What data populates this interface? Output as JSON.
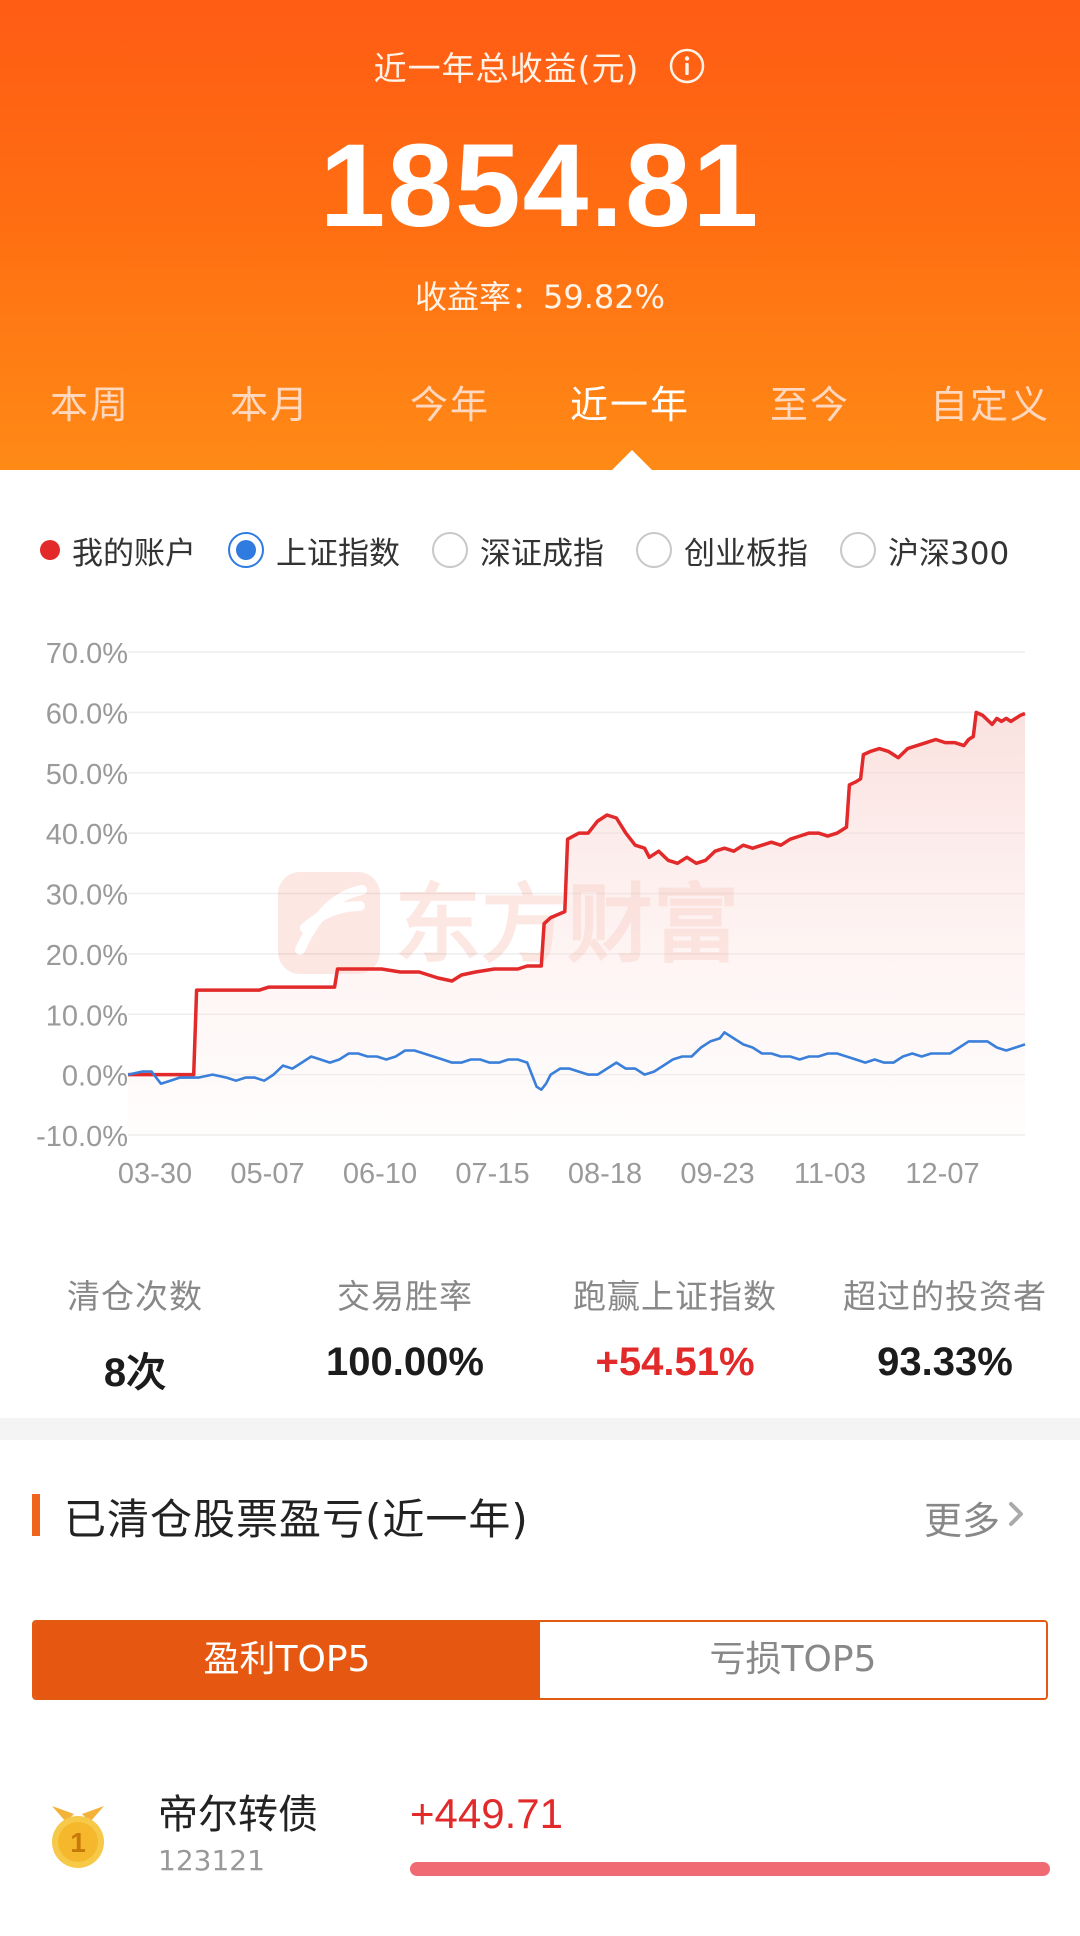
{
  "header": {
    "title": "近一年总收益(元)",
    "info_icon": "info-icon",
    "amount": "1854.81",
    "rate": "收益率：59.82%",
    "colors": {
      "bg_top": "#ff5c14",
      "bg_bottom": "#ff8a16"
    }
  },
  "period_tabs": [
    {
      "label": "本周",
      "active": false
    },
    {
      "label": "本月",
      "active": false
    },
    {
      "label": "今年",
      "active": false
    },
    {
      "label": "近一年",
      "active": true
    },
    {
      "label": "至今",
      "active": false
    },
    {
      "label": "自定义",
      "active": false
    }
  ],
  "index_selector": {
    "account_label": "我的账户",
    "options": [
      {
        "label": "上证指数",
        "checked": true
      },
      {
        "label": "深证成指",
        "checked": false
      },
      {
        "label": "创业板指",
        "checked": false
      },
      {
        "label": "沪深300",
        "checked": false
      }
    ]
  },
  "chart_data": {
    "type": "line",
    "title": "",
    "xlabel": "",
    "ylabel": "",
    "ylim": [
      -10,
      70
    ],
    "y_ticks": [
      "70.0%",
      "60.0%",
      "50.0%",
      "40.0%",
      "30.0%",
      "20.0%",
      "10.0%",
      "0.0%",
      "-10.0%"
    ],
    "x_ticks": [
      "03-30",
      "05-07",
      "06-10",
      "07-15",
      "08-18",
      "09-23",
      "11-03",
      "12-07"
    ],
    "grid": true,
    "legend": "top",
    "watermark": "东方财富",
    "series": [
      {
        "name": "我的账户",
        "color": "#e22a2a",
        "fill": true,
        "points": [
          [
            0,
            0
          ],
          [
            5,
            0
          ],
          [
            10,
            0
          ],
          [
            14,
            0
          ],
          [
            14.6,
            14
          ],
          [
            20,
            14
          ],
          [
            28,
            14
          ],
          [
            30,
            14.5
          ],
          [
            35,
            14.5
          ],
          [
            44,
            14.5
          ],
          [
            44.6,
            17.5
          ],
          [
            54,
            17.5
          ],
          [
            58,
            17
          ],
          [
            62,
            17
          ],
          [
            64,
            16.5
          ],
          [
            66,
            16
          ],
          [
            69,
            15.5
          ],
          [
            71,
            16.5
          ],
          [
            74,
            17
          ],
          [
            78,
            17.5
          ],
          [
            83,
            17.5
          ],
          [
            85,
            18
          ],
          [
            88,
            18
          ],
          [
            88.6,
            25
          ],
          [
            90,
            26
          ],
          [
            93,
            27
          ],
          [
            93.6,
            39
          ],
          [
            96,
            40
          ],
          [
            98,
            40
          ],
          [
            100,
            42
          ],
          [
            102,
            43
          ],
          [
            104,
            42.5
          ],
          [
            106,
            40
          ],
          [
            108,
            38
          ],
          [
            110,
            37.5
          ],
          [
            111,
            36
          ],
          [
            113,
            37
          ],
          [
            115,
            35.5
          ],
          [
            117,
            35
          ],
          [
            119,
            36
          ],
          [
            121,
            35
          ],
          [
            123,
            35.5
          ],
          [
            125,
            37
          ],
          [
            127,
            37.5
          ],
          [
            129,
            37
          ],
          [
            131,
            38
          ],
          [
            133,
            37.5
          ],
          [
            135,
            38
          ],
          [
            137,
            38.5
          ],
          [
            139,
            38
          ],
          [
            141,
            39
          ],
          [
            143,
            39.5
          ],
          [
            145,
            40
          ],
          [
            147,
            40
          ],
          [
            149,
            39.5
          ],
          [
            151,
            40
          ],
          [
            152,
            40.5
          ],
          [
            153,
            41
          ],
          [
            153.6,
            48
          ],
          [
            155,
            48.5
          ],
          [
            156,
            49
          ],
          [
            156.6,
            53
          ],
          [
            158,
            53.5
          ],
          [
            160,
            54
          ],
          [
            162,
            53.5
          ],
          [
            164,
            52.5
          ],
          [
            166,
            54
          ],
          [
            168,
            54.5
          ],
          [
            170,
            55
          ],
          [
            172,
            55.5
          ],
          [
            174,
            55
          ],
          [
            176,
            55
          ],
          [
            178,
            54.5
          ],
          [
            179,
            55.5
          ],
          [
            180,
            56
          ],
          [
            180.6,
            60
          ],
          [
            182,
            59.5
          ],
          [
            184,
            58
          ],
          [
            185,
            59
          ],
          [
            186,
            58.5
          ],
          [
            187,
            59
          ],
          [
            188,
            58.5
          ],
          [
            189,
            59
          ],
          [
            190,
            59.5
          ],
          [
            191,
            59.82
          ]
        ]
      },
      {
        "name": "上证指数",
        "color": "#3a7fd9",
        "fill": false,
        "points": [
          [
            0,
            0
          ],
          [
            3,
            0.5
          ],
          [
            5,
            0.5
          ],
          [
            7,
            -1.5
          ],
          [
            9,
            -1
          ],
          [
            11,
            -0.5
          ],
          [
            13,
            -0.5
          ],
          [
            15,
            -0.5
          ],
          [
            18,
            0
          ],
          [
            21,
            -0.5
          ],
          [
            23,
            -1
          ],
          [
            25,
            -0.5
          ],
          [
            27,
            -0.5
          ],
          [
            29,
            -1
          ],
          [
            31,
            0
          ],
          [
            33,
            1.5
          ],
          [
            35,
            1
          ],
          [
            37,
            2
          ],
          [
            39,
            3
          ],
          [
            41,
            2.5
          ],
          [
            43,
            2
          ],
          [
            45,
            2.5
          ],
          [
            47,
            3.5
          ],
          [
            49,
            3.5
          ],
          [
            51,
            3
          ],
          [
            53,
            3
          ],
          [
            55,
            2.5
          ],
          [
            57,
            3
          ],
          [
            59,
            4
          ],
          [
            61,
            4
          ],
          [
            63,
            3.5
          ],
          [
            65,
            3
          ],
          [
            67,
            2.5
          ],
          [
            69,
            2
          ],
          [
            71,
            2
          ],
          [
            73,
            2.5
          ],
          [
            75,
            2.5
          ],
          [
            77,
            2
          ],
          [
            79,
            2
          ],
          [
            81,
            2.5
          ],
          [
            83,
            2.5
          ],
          [
            85,
            2
          ],
          [
            86,
            0
          ],
          [
            87,
            -2
          ],
          [
            88,
            -2.5
          ],
          [
            89,
            -1.5
          ],
          [
            90,
            0
          ],
          [
            92,
            1
          ],
          [
            94,
            1
          ],
          [
            96,
            0.5
          ],
          [
            98,
            0
          ],
          [
            100,
            0
          ],
          [
            102,
            1
          ],
          [
            104,
            2
          ],
          [
            106,
            1
          ],
          [
            108,
            1
          ],
          [
            110,
            0
          ],
          [
            112,
            0.5
          ],
          [
            114,
            1.5
          ],
          [
            116,
            2.5
          ],
          [
            118,
            3
          ],
          [
            120,
            3
          ],
          [
            122,
            4.5
          ],
          [
            124,
            5.5
          ],
          [
            126,
            6
          ],
          [
            127,
            7
          ],
          [
            129,
            6
          ],
          [
            131,
            5
          ],
          [
            133,
            4.5
          ],
          [
            135,
            3.5
          ],
          [
            137,
            3.5
          ],
          [
            139,
            3
          ],
          [
            141,
            3
          ],
          [
            143,
            2.5
          ],
          [
            145,
            3
          ],
          [
            147,
            3
          ],
          [
            149,
            3.5
          ],
          [
            151,
            3.5
          ],
          [
            153,
            3
          ],
          [
            155,
            2.5
          ],
          [
            157,
            2
          ],
          [
            159,
            2.5
          ],
          [
            161,
            2
          ],
          [
            163,
            2
          ],
          [
            165,
            3
          ],
          [
            167,
            3.5
          ],
          [
            169,
            3
          ],
          [
            171,
            3.5
          ],
          [
            173,
            3.5
          ],
          [
            175,
            3.5
          ],
          [
            177,
            4.5
          ],
          [
            179,
            5.5
          ],
          [
            181,
            5.5
          ],
          [
            183,
            5.5
          ],
          [
            185,
            4.5
          ],
          [
            187,
            4
          ],
          [
            189,
            4.5
          ],
          [
            191,
            5
          ]
        ]
      }
    ],
    "x_domain": [
      0,
      191
    ]
  },
  "stats": [
    {
      "label": "清仓次数",
      "value": "8次",
      "highlight": false
    },
    {
      "label": "交易胜率",
      "value": "100.00%",
      "highlight": false
    },
    {
      "label": "跑赢上证指数",
      "value": "+54.51%",
      "highlight": true
    },
    {
      "label": "超过的投资者",
      "value": "93.33%",
      "highlight": false
    }
  ],
  "closed_section": {
    "title": "已清仓股票盈亏(近一年)",
    "more_label": "更多",
    "more_icon": "chevron-right-icon"
  },
  "profit_toggle": {
    "profit_label": "盈利TOP5",
    "loss_label": "亏损TOP5",
    "active": "profit"
  },
  "top_list": [
    {
      "rank": "1",
      "name": "帝尔转债",
      "code": "123121",
      "profit": "+449.71",
      "bar_fraction": 1.0,
      "medal_icon": "gold-medal-icon"
    }
  ]
}
